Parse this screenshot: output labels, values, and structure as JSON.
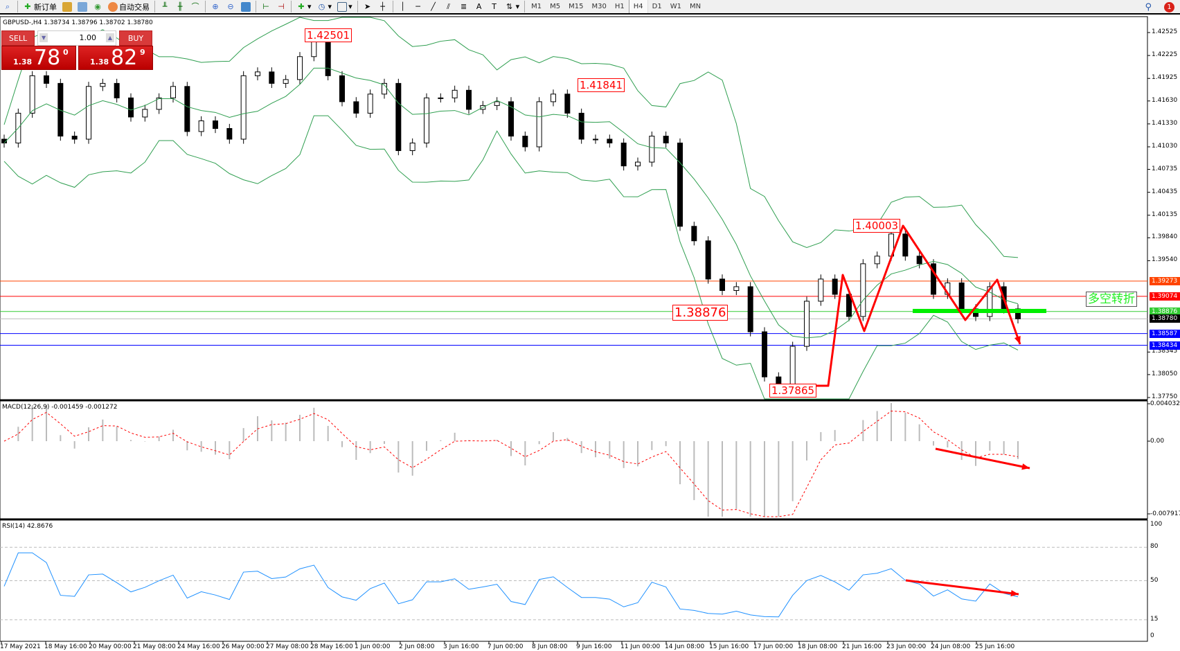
{
  "toolbar": {
    "new_order": "新订单",
    "auto_trading": "自动交易",
    "timeframes": [
      "M1",
      "M5",
      "M15",
      "M30",
      "H1",
      "H4",
      "D1",
      "W1",
      "MN"
    ],
    "active_timeframe": "H4",
    "notification_count": "1"
  },
  "chart": {
    "symbol_line": "GBPUSD-,H4  1.38734 1.38796 1.38702 1.38780",
    "trade_panel": {
      "sell": "SELL",
      "buy": "BUY",
      "lot": "1.00",
      "sell_prefix": "1.38",
      "sell_big": "78",
      "sell_sup": "0",
      "buy_prefix": "1.38",
      "buy_big": "82",
      "buy_sup": "9"
    },
    "price_ticks": [
      "1.42525",
      "1.42225",
      "1.41925",
      "1.41630",
      "1.41330",
      "1.41030",
      "1.40735",
      "1.40435",
      "1.40135",
      "1.39840",
      "1.39540",
      "1.38345",
      "1.38050",
      "1.37750"
    ],
    "levels": [
      {
        "price": "1.39273",
        "color": "#ff4400"
      },
      {
        "price": "1.39074",
        "color": "#ff0000"
      },
      {
        "price": "1.38876",
        "color": "#33cc33"
      },
      {
        "price": "1.38780",
        "color": "#000000"
      },
      {
        "price": "1.38587",
        "color": "#0000ff"
      },
      {
        "price": "1.38434",
        "color": "#0000ff"
      }
    ],
    "annotations": [
      "1.42501",
      "1.41841",
      "1.40003",
      "1.38876",
      "1.37865"
    ],
    "pattern_label": "多空转折",
    "closes": [
      1.4108,
      1.4147,
      1.4196,
      1.4186,
      1.4117,
      1.4113,
      1.4182,
      1.4186,
      1.4167,
      1.4142,
      1.4152,
      1.4167,
      1.4182,
      1.4123,
      1.4137,
      1.4127,
      1.4113,
      1.4196,
      1.4201,
      1.4186,
      1.4191,
      1.4221,
      1.4241,
      1.4196,
      1.4162,
      1.4147,
      1.4172,
      1.4186,
      1.4098,
      1.4108,
      1.4167,
      1.4167,
      1.4177,
      1.4152,
      1.4157,
      1.4162,
      1.4117,
      1.4103,
      1.4162,
      1.4172,
      1.4147,
      1.4113,
      1.4113,
      1.4108,
      1.4078,
      1.4083,
      1.4117,
      1.4108,
      1.3999,
      1.398,
      1.393,
      1.3915,
      1.392,
      1.3861,
      1.3802,
      1.3792,
      1.3842,
      1.3901,
      1.393,
      1.391,
      1.3881,
      1.395,
      1.396,
      1.3989,
      1.396,
      1.395,
      1.391,
      1.3925,
      1.3891,
      1.3881,
      1.392,
      1.3891,
      1.3878
    ],
    "bands_color": "#2e9e4f"
  },
  "macd": {
    "label": "MACD(12,26,9) -0.001459 -0.001272",
    "ticks": [
      "0.004032",
      "0.00",
      "-0.007917"
    ]
  },
  "rsi": {
    "label": "RSI(14) 42.8676",
    "ticks": [
      "100",
      "80",
      "50",
      "15",
      "0"
    ]
  },
  "time_axis": [
    "17 May 2021",
    "18 May 16:00",
    "20 May 00:00",
    "21 May 08:00",
    "24 May 16:00",
    "26 May 00:00",
    "27 May 08:00",
    "28 May 16:00",
    "1 Jun 00:00",
    "2 Jun 08:00",
    "3 Jun 16:00",
    "7 Jun 00:00",
    "8 Jun 08:00",
    "9 Jun 16:00",
    "11 Jun 00:00",
    "14 Jun 08:00",
    "15 Jun 16:00",
    "17 Jun 00:00",
    "18 Jun 08:00",
    "21 Jun 16:00",
    "23 Jun 00:00",
    "24 Jun 08:00",
    "25 Jun 16:00"
  ]
}
